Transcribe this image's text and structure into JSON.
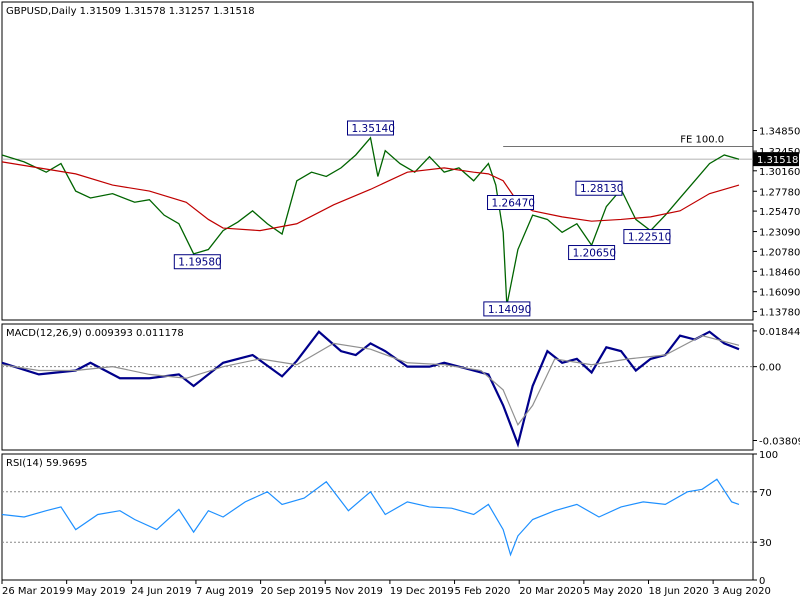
{
  "chart_data": [
    {
      "type": "bar",
      "title": "GBPUSD,Daily  1.31509 1.31578 1.31257 1.31518",
      "ylim": [
        1.128,
        1.498
      ],
      "y_ticks": [
        "1.34850",
        "1.32450",
        "1.30160",
        "1.27780",
        "1.25470",
        "1.23090",
        "1.20780",
        "1.18460",
        "1.16090",
        "1.13780"
      ],
      "current_price": "1.31518",
      "x_ticks": [
        "26 Mar 2019",
        "9 May 2019",
        "24 Jun 2019",
        "7 Aug 2019",
        "20 Sep 2019",
        "5 Nov 2019",
        "19 Dec 2019",
        "5 Feb 2020",
        "20 Mar 2020",
        "5 May 2020",
        "18 Jun 2020",
        "3 Aug 2020"
      ],
      "annotations": [
        {
          "text": "1.35140",
          "x": 0.5,
          "y": 1.3514
        },
        {
          "text": "1.19580",
          "x": 0.265,
          "y": 1.1958
        },
        {
          "text": "1.26470",
          "x": 0.69,
          "y": 1.2647
        },
        {
          "text": "1.14090",
          "x": 0.685,
          "y": 1.1409
        },
        {
          "text": "1.28130",
          "x": 0.81,
          "y": 1.2813
        },
        {
          "text": "1.22510",
          "x": 0.875,
          "y": 1.2251
        },
        {
          "text": "1.20650",
          "x": 0.8,
          "y": 1.2065
        },
        {
          "text": "FE 100.0",
          "x": 0.98,
          "y": 1.33
        }
      ],
      "fe_level": 1.33,
      "series": [
        {
          "name": "price",
          "color": "#006400",
          "x": [
            0,
            0.03,
            0.06,
            0.08,
            0.1,
            0.12,
            0.15,
            0.18,
            0.2,
            0.22,
            0.24,
            0.26,
            0.28,
            0.3,
            0.32,
            0.34,
            0.36,
            0.38,
            0.4,
            0.42,
            0.44,
            0.46,
            0.48,
            0.5,
            0.51,
            0.52,
            0.54,
            0.56,
            0.58,
            0.6,
            0.62,
            0.64,
            0.66,
            0.67,
            0.68,
            0.685,
            0.7,
            0.72,
            0.74,
            0.76,
            0.78,
            0.8,
            0.82,
            0.84,
            0.86,
            0.88,
            0.9,
            0.92,
            0.94,
            0.96,
            0.98,
            1.0
          ],
          "y": [
            1.32,
            1.312,
            1.3,
            1.31,
            1.278,
            1.27,
            1.275,
            1.265,
            1.268,
            1.25,
            1.24,
            1.205,
            1.21,
            1.232,
            1.242,
            1.255,
            1.24,
            1.228,
            1.29,
            1.3,
            1.295,
            1.305,
            1.32,
            1.34,
            1.295,
            1.325,
            1.31,
            1.3,
            1.318,
            1.3,
            1.305,
            1.29,
            1.31,
            1.285,
            1.23,
            1.145,
            1.21,
            1.25,
            1.245,
            1.23,
            1.24,
            1.215,
            1.26,
            1.28,
            1.245,
            1.232,
            1.25,
            1.27,
            1.29,
            1.31,
            1.32,
            1.315
          ]
        },
        {
          "name": "ma",
          "color": "#c00000",
          "x": [
            0,
            0.05,
            0.1,
            0.15,
            0.2,
            0.25,
            0.28,
            0.3,
            0.35,
            0.4,
            0.45,
            0.5,
            0.55,
            0.6,
            0.64,
            0.66,
            0.68,
            0.7,
            0.72,
            0.76,
            0.8,
            0.84,
            0.88,
            0.92,
            0.96,
            1.0
          ],
          "y": [
            1.312,
            1.305,
            1.298,
            1.285,
            1.278,
            1.265,
            1.245,
            1.235,
            1.232,
            1.24,
            1.262,
            1.28,
            1.3,
            1.305,
            1.3,
            1.298,
            1.29,
            1.265,
            1.255,
            1.248,
            1.243,
            1.245,
            1.248,
            1.255,
            1.275,
            1.285
          ]
        }
      ]
    },
    {
      "type": "line",
      "title": "MACD(12,26,9) 0.009393 0.011178",
      "ylim": [
        -0.043,
        0.022
      ],
      "y_ticks": [
        "0.018442",
        "0.00",
        "-0.038095"
      ],
      "series": [
        {
          "name": "macd",
          "color": "#00008b",
          "x": [
            0,
            0.05,
            0.1,
            0.12,
            0.16,
            0.2,
            0.24,
            0.26,
            0.3,
            0.34,
            0.38,
            0.4,
            0.43,
            0.46,
            0.48,
            0.5,
            0.52,
            0.55,
            0.58,
            0.6,
            0.63,
            0.66,
            0.68,
            0.7,
            0.72,
            0.74,
            0.76,
            0.78,
            0.8,
            0.82,
            0.84,
            0.86,
            0.88,
            0.9,
            0.92,
            0.94,
            0.96,
            0.98,
            1.0
          ],
          "y": [
            0.002,
            -0.004,
            -0.002,
            0.002,
            -0.006,
            -0.006,
            -0.004,
            -0.01,
            0.002,
            0.006,
            -0.005,
            0.003,
            0.018,
            0.008,
            0.006,
            0.012,
            0.008,
            0.0,
            0.0,
            0.002,
            -0.001,
            -0.004,
            -0.02,
            -0.04,
            -0.01,
            0.008,
            0.002,
            0.004,
            -0.003,
            0.01,
            0.008,
            -0.002,
            0.004,
            0.006,
            0.016,
            0.014,
            0.018,
            0.012,
            0.009
          ]
        },
        {
          "name": "signal",
          "color": "#909090",
          "x": [
            0,
            0.05,
            0.1,
            0.15,
            0.2,
            0.25,
            0.3,
            0.35,
            0.4,
            0.45,
            0.5,
            0.55,
            0.6,
            0.65,
            0.68,
            0.7,
            0.72,
            0.75,
            0.8,
            0.85,
            0.9,
            0.95,
            1.0
          ],
          "y": [
            0.001,
            -0.002,
            -0.002,
            0.0,
            -0.004,
            -0.006,
            0.0,
            0.004,
            0.001,
            0.012,
            0.009,
            0.002,
            0.001,
            -0.002,
            -0.012,
            -0.03,
            -0.02,
            0.004,
            0.001,
            0.004,
            0.006,
            0.016,
            0.011
          ]
        }
      ]
    },
    {
      "type": "line",
      "title": "RSI(14) 59.9695",
      "ylim": [
        0,
        100
      ],
      "y_ticks": [
        "100",
        "70",
        "30",
        "0"
      ],
      "series": [
        {
          "name": "rsi",
          "color": "#1e90ff",
          "x": [
            0,
            0.03,
            0.06,
            0.08,
            0.1,
            0.13,
            0.16,
            0.18,
            0.21,
            0.24,
            0.26,
            0.28,
            0.3,
            0.33,
            0.36,
            0.38,
            0.41,
            0.44,
            0.47,
            0.5,
            0.52,
            0.55,
            0.58,
            0.61,
            0.64,
            0.66,
            0.68,
            0.69,
            0.7,
            0.72,
            0.75,
            0.78,
            0.81,
            0.84,
            0.87,
            0.9,
            0.93,
            0.95,
            0.97,
            0.99,
            1.0
          ],
          "y": [
            52,
            50,
            55,
            58,
            40,
            52,
            55,
            48,
            40,
            56,
            38,
            55,
            50,
            62,
            70,
            60,
            65,
            78,
            55,
            70,
            52,
            62,
            58,
            57,
            52,
            60,
            40,
            20,
            35,
            48,
            55,
            60,
            50,
            58,
            62,
            60,
            70,
            72,
            80,
            62,
            60
          ]
        }
      ]
    }
  ]
}
